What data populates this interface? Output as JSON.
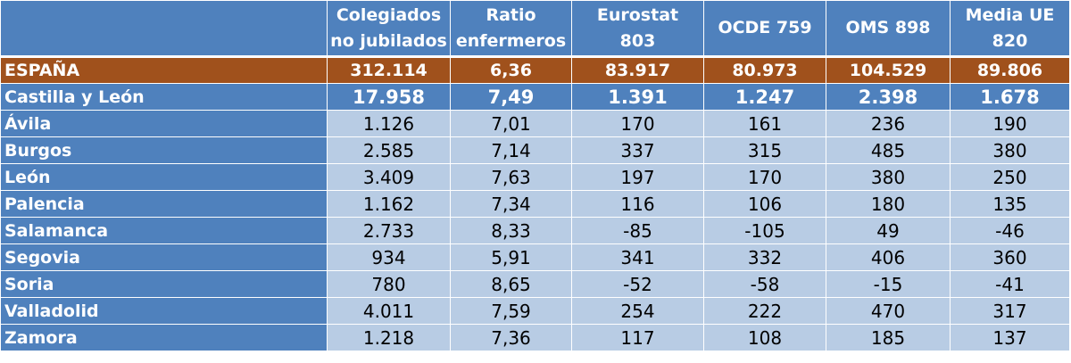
{
  "headers": [
    {
      "l1": "",
      "l2": ""
    },
    {
      "l1": "Colegiados",
      "l2": "no jubilados"
    },
    {
      "l1": "Ratio",
      "l2": "enfermeros"
    },
    {
      "l1": "Eurostat",
      "l2": "803"
    },
    {
      "l1": "OCDE 759",
      "l2": ""
    },
    {
      "l1": "OMS 898",
      "l2": ""
    },
    {
      "l1": "Media UE",
      "l2": "820"
    }
  ],
  "espana": {
    "name": "ESPAÑA",
    "values": [
      "312.114",
      "6,36",
      "83.917",
      "80.973",
      "104.529",
      "89.806"
    ]
  },
  "cyl": {
    "name": "Castilla y León",
    "values": [
      "17.958",
      "7,49",
      "1.391",
      "1.247",
      "2.398",
      "1.678"
    ]
  },
  "provinces": [
    {
      "name": "Ávila",
      "values": [
        "1.126",
        "7,01",
        "170",
        "161",
        "236",
        "190"
      ]
    },
    {
      "name": "Burgos",
      "values": [
        "2.585",
        "7,14",
        "337",
        "315",
        "485",
        "380"
      ]
    },
    {
      "name": "León",
      "values": [
        "3.409",
        "7,63",
        "197",
        "170",
        "380",
        "250"
      ]
    },
    {
      "name": "Palencia",
      "values": [
        "1.162",
        "7,34",
        "116",
        "106",
        "180",
        "135"
      ]
    },
    {
      "name": "Salamanca",
      "values": [
        "2.733",
        "8,33",
        "-85",
        "-105",
        "49",
        "-46"
      ]
    },
    {
      "name": "Segovia",
      "values": [
        "934",
        "5,91",
        "341",
        "332",
        "406",
        "360"
      ]
    },
    {
      "name": "Soria",
      "values": [
        "780",
        "8,65",
        "-52",
        "-58",
        "-15",
        "-41"
      ]
    },
    {
      "name": "Valladolid",
      "values": [
        "4.011",
        "7,59",
        "254",
        "222",
        "470",
        "317"
      ]
    },
    {
      "name": "Zamora",
      "values": [
        "1.218",
        "7,36",
        "117",
        "108",
        "185",
        "137"
      ]
    }
  ],
  "colors": {
    "header": "#4f81bd",
    "espana": "#a0511c",
    "cell": "#b8cce4"
  }
}
